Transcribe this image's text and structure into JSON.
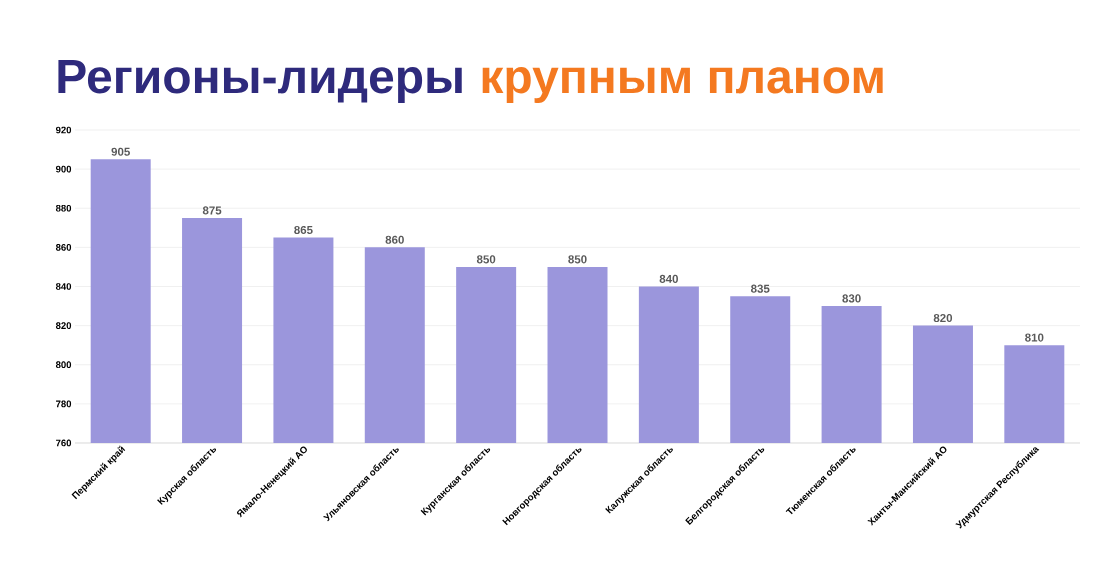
{
  "chart_data": {
    "type": "bar",
    "title": "Регионы-лидеры",
    "subtitle": "крупным планом",
    "categories": [
      "Пермский край",
      "Курская область",
      "Ямало-Ненецкий АО",
      "Ульяновская область",
      "Курганская область",
      "Новгородская область",
      "Калужская область",
      "Белгородская область",
      "Тюменская область",
      "Ханты-Мансийский АО",
      "Удмуртская Республика"
    ],
    "values": [
      905,
      875,
      865,
      860,
      850,
      850,
      840,
      835,
      830,
      820,
      810
    ],
    "color": "#9b96dc",
    "ylim": [
      760,
      920
    ],
    "yticks": [
      760,
      780,
      800,
      820,
      840,
      860,
      880,
      900,
      920
    ],
    "grid": "y",
    "data_labels": true
  }
}
